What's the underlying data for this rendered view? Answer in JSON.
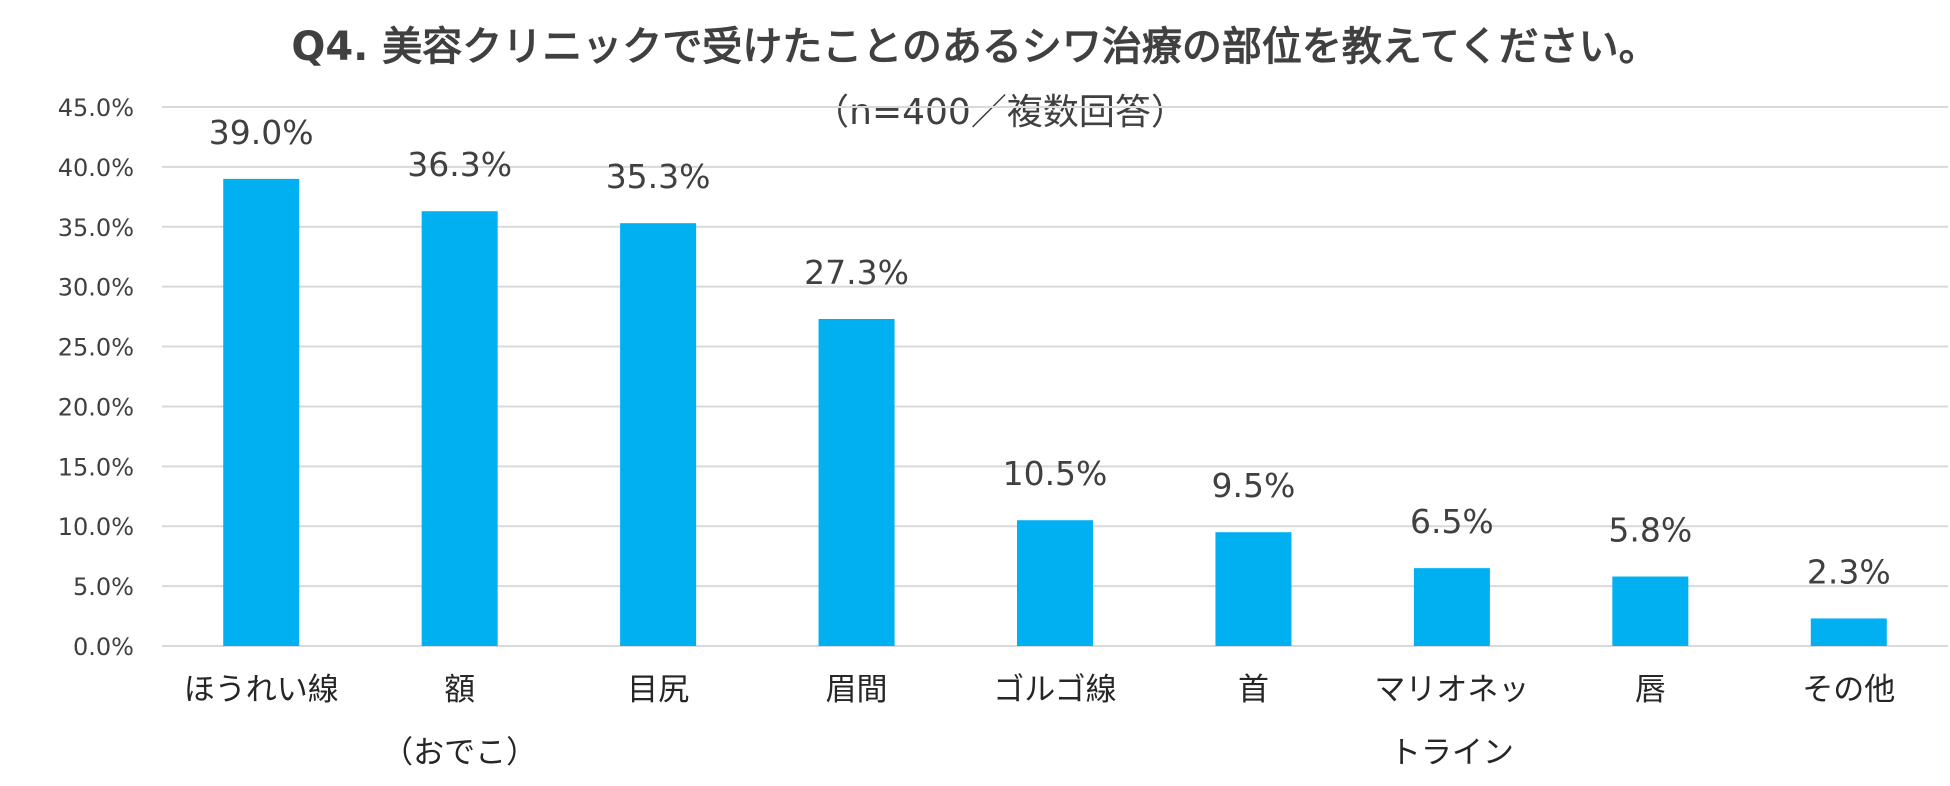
{
  "chart_data": {
    "type": "bar",
    "title": "Q4. 美容クリニックで受けたことのあるシワ治療の部位を教えてください。",
    "subtitle": "（n=400／複数回答）",
    "categories": [
      [
        "ほうれい線"
      ],
      [
        "額",
        "（おでこ）"
      ],
      [
        "目尻"
      ],
      [
        "眉間"
      ],
      [
        "ゴルゴ線"
      ],
      [
        "首"
      ],
      [
        "マリオネッ",
        "トライン"
      ],
      [
        "唇"
      ],
      [
        "その他"
      ]
    ],
    "values": [
      39.0,
      36.3,
      35.3,
      27.3,
      10.5,
      9.5,
      6.5,
      5.8,
      2.3
    ],
    "data_labels": [
      "39.0%",
      "36.3%",
      "35.3%",
      "27.3%",
      "10.5%",
      "9.5%",
      "6.5%",
      "5.8%",
      "2.3%"
    ],
    "yticks": [
      "0.0%",
      "5.0%",
      "10.0%",
      "15.0%",
      "20.0%",
      "25.0%",
      "30.0%",
      "35.0%",
      "40.0%",
      "45.0%"
    ],
    "ylim": [
      0,
      45
    ],
    "ystep": 5,
    "xlabel": "",
    "ylabel": "",
    "grid": true,
    "bar_color": "#00b0f0",
    "grid_color": "#d9d9d9"
  }
}
